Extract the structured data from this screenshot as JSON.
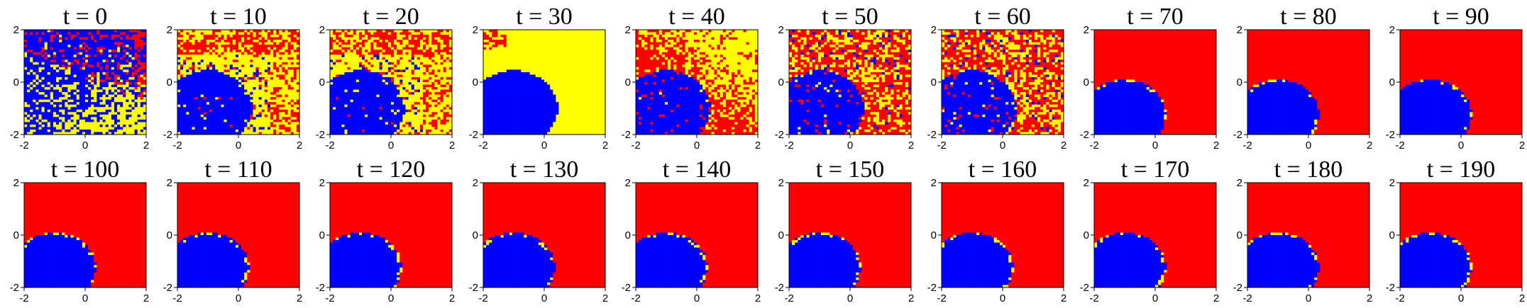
{
  "chart_data": {
    "type": "heatmap",
    "layout": {
      "rows": 2,
      "cols": 10
    },
    "colors": {
      "blue": "#0000ff",
      "red": "#ff0000",
      "yellow": "#ffff00"
    },
    "axes": {
      "xlim": [
        -2,
        2
      ],
      "ylim": [
        -2,
        2
      ],
      "xticks": [
        -2,
        0,
        2
      ],
      "yticks": [
        -2,
        0,
        2
      ],
      "grid": false,
      "legend": "none"
    },
    "tick_labels": {
      "x": [
        "-2",
        "0",
        "2"
      ],
      "y": [
        "-2",
        "0",
        "2"
      ]
    },
    "panels": [
      {
        "title": "t = 0",
        "t": 0,
        "state": "random-yellow-blue"
      },
      {
        "title": "t = 10",
        "t": 10,
        "state": "yellow-red-noise"
      },
      {
        "title": "t = 20",
        "t": 20,
        "state": "yellow-red-noise"
      },
      {
        "title": "t = 30",
        "t": 30,
        "state": "yellow-background"
      },
      {
        "title": "t = 40",
        "t": 40,
        "state": "red-yellow-mix"
      },
      {
        "title": "t = 50",
        "t": 50,
        "state": "red-yellow-noise"
      },
      {
        "title": "t = 60",
        "t": 60,
        "state": "red-yellow-noise"
      },
      {
        "title": "t = 70",
        "t": 70,
        "state": "red-converged"
      },
      {
        "title": "t = 80",
        "t": 80,
        "state": "red-converged"
      },
      {
        "title": "t = 90",
        "t": 90,
        "state": "red-converged"
      },
      {
        "title": "t = 100",
        "t": 100,
        "state": "red-converged"
      },
      {
        "title": "t = 110",
        "t": 110,
        "state": "red-converged"
      },
      {
        "title": "t = 120",
        "t": 120,
        "state": "red-converged"
      },
      {
        "title": "t = 130",
        "t": 130,
        "state": "red-converged"
      },
      {
        "title": "t = 140",
        "t": 140,
        "state": "red-converged"
      },
      {
        "title": "t = 150",
        "t": 150,
        "state": "red-converged"
      },
      {
        "title": "t = 160",
        "t": 160,
        "state": "red-converged"
      },
      {
        "title": "t = 170",
        "t": 170,
        "state": "red-converged"
      },
      {
        "title": "t = 180",
        "t": 180,
        "state": "red-converged"
      },
      {
        "title": "t = 190",
        "t": 190,
        "state": "red-converged"
      }
    ]
  }
}
